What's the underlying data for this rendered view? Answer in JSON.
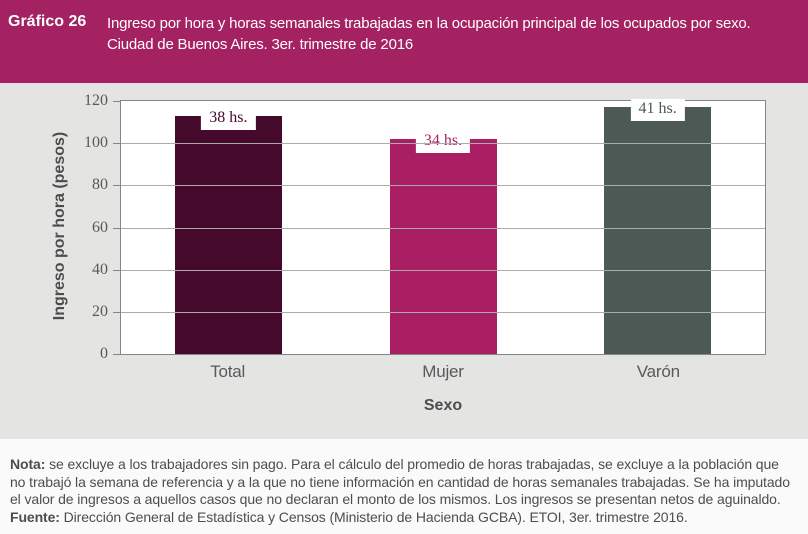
{
  "header": {
    "figure_number": "Gráfico 26",
    "title_lines": [
      "Ingreso por hora y horas semanales trabajadas en la ocupación principal de los ocupados por sexo.",
      "Ciudad de Buenos Aires. 3er. trimestre de 2016"
    ]
  },
  "chart_data": {
    "type": "bar",
    "categories": [
      "Total",
      "Mujer",
      "Varón"
    ],
    "values": [
      113,
      102,
      117
    ],
    "bar_labels": [
      "38 hs.",
      "34 hs.",
      "41 hs."
    ],
    "bar_colors": [
      "#45092C",
      "#AA1F63",
      "#4D5955"
    ],
    "title": "",
    "xlabel": "Sexo",
    "ylabel": "Ingreso por hora (pesos)",
    "ylim": [
      0,
      120
    ],
    "yticks": [
      0,
      20,
      40,
      60,
      80,
      100,
      120
    ],
    "grid": true,
    "legend": "none",
    "plot_background": "#FFFFFF"
  },
  "footer": {
    "note_label": "Nota:",
    "note_text": "se excluye a los trabajadores sin pago. Para el cálculo del promedio de horas trabajadas, se excluye a la población que no trabajó la semana de referencia y a la que no tiene información en cantidad de horas semanales trabajadas. Se ha imputado el valor de ingresos a aquellos casos que no declaran el monto de los mismos. Los ingresos se presentan netos de aguinaldo.",
    "source_label": "Fuente:",
    "source_text": "Dirección General de Estadística y Censos (Ministerio de Hacienda GCBA). ETOI, 3er. trimestre 2016."
  },
  "colors": {
    "header_bg": "#A42162",
    "chart_bg": "#E4E4E3",
    "axis_text": "#595959",
    "grid_line": "#ABABAB",
    "plot_border": "#858585",
    "note_text": "#4D4D4D"
  }
}
